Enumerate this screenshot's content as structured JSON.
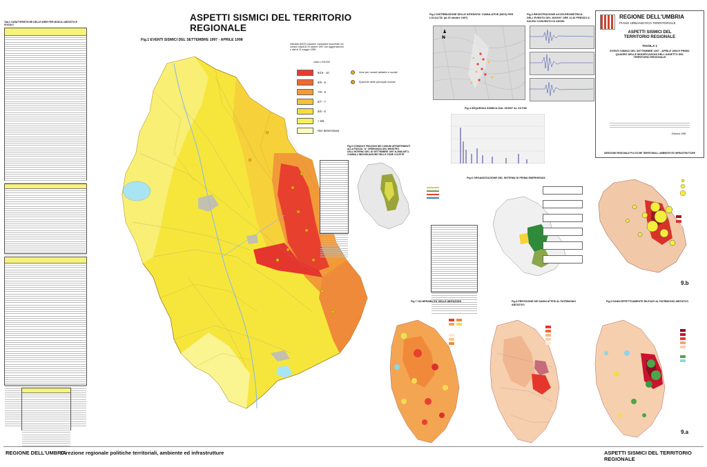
{
  "title": "ASPETTI SISMICI DEL TERRITORIO REGIONALE",
  "fig1_title": "Fig.1   EVENTI SISMICI DEL SETTEMBRE 1997 - APRILE 1998",
  "left_table_title": "Tab.1   CARATTERISTICHE DELLE AREE PER MODULI ABITATIVI E SOCIALI",
  "legend": {
    "intro": "Intensità (MCS) massime cumulative riscontrate nei comuni colpiti al 20 ottobre 1997 con aggiornamenti e dati al 21 maggio 1998",
    "scale": "scala 1:200.000",
    "classes": [
      {
        "label": "9/10 - 10",
        "color": "#e83b2f"
      },
      {
        "label": "8/9 - 9",
        "color": "#ee6a35"
      },
      {
        "label": "7/8 - 8",
        "color": "#f29a3a"
      },
      {
        "label": "6/7 - 7",
        "color": "#f6c03a"
      },
      {
        "label": "5/6 - 6",
        "color": "#f7dd3c"
      },
      {
        "label": "< 5/6",
        "color": "#f7ef5c"
      },
      {
        "label": "Non determinata",
        "color": "#fdfbc0"
      }
    ],
    "symbols": [
      {
        "label": "Aree per moduli abitativi e sociali",
        "color": "#e2c100"
      },
      {
        "label": "Epicentri delle principali scosse",
        "color": "#f0a400"
      }
    ]
  },
  "panels": {
    "fig2": "Fig.2   DISTRIBUZIONE DELLE INTENSITA' CUMULATIVE (MCS) PER LOCALITA' (al 20 ottobre 1997)",
    "fig3": "Fig.3   REGISTRAZIONE ACCELEROMETRICA DELL'EVENTO DEL 26/09/97 ORE 11.40 PRESSO IL SACRO CONVENTO DI ASSISI",
    "fig4": "Fig.4   SEQUENZA SISMICA DAL 26/9/97 AL 31/7/98",
    "fig5": "Fig.5   COMUNI E FRAZIONI DEI COMUNI APPARTENENTI ALLA FASCIA \"A\" ORDINANZA DEL MINISTRO DELL'INTERNO DEL 30 SETTEMBRE 1997 N.2668 ART.1 COMMA 2 INDIVIDUAZIONE DELLE ZONE COLPITE",
    "fig6": "Fig.6   ORGANIZZAZIONE DEL SISTEMA DI PRIMA EMERGENZA",
    "fig7": "Fig.7   VULNERABILITA' DELLE ABITAZIONI",
    "fig8": "Fig.8   PREVISIONE DEI DANNI ATTESI AL PATRIMONIO ABITATIVO",
    "fig9": "Fig.9   DANNI EFFETTIVAMENTE RILEVATI AL PATRIMONIO ABITATIVO",
    "label_9b": "9.b",
    "label_9a": "9.a"
  },
  "header_box": {
    "region": "REGIONE DELL'UMBRIA",
    "plan": "PIANO URBANISTICO TERRITORIALE",
    "subject": "ASPETTI SISMICI DEL TERRITORIO REGIONALE",
    "tavola": "TAVOLA 1",
    "desc": "EVENTI SISMICI DEL SETTEMBRE 1997 - APRILE 1998 E PRIMO QUADRO DELLE MODIFICAZIONI DELL'ASSETTO DEL TERRITORIO REGIONALE",
    "edition": "Edizione 1998",
    "direction": "DIREZIONE REGIONALE POLITICHE TERRITORIALI, AMBIENTE ED INFRASTRUTTURE"
  },
  "footer": {
    "left_region": "REGIONE DELL'UMBRIA",
    "left_direction": "Direzione regionale politiche territoriali, ambiente ed infrastrutture",
    "right": "ASPETTI SISMICI DEL TERRITORIO REGIONALE"
  }
}
